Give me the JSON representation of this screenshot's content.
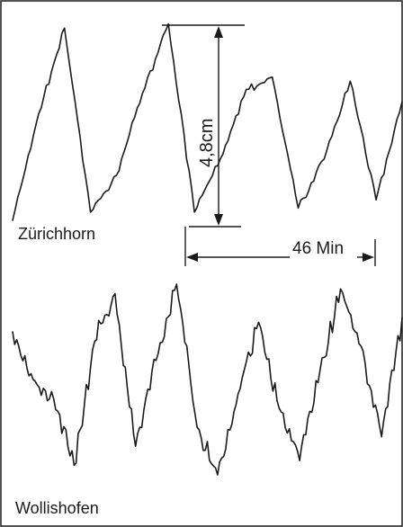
{
  "chart_data": [
    {
      "type": "line",
      "series": [
        {
          "name": "Zürichhorn",
          "values": [
            0.0,
            2.6,
            4.7,
            0.2,
            1.1,
            3.1,
            4.8,
            0.2,
            1.5,
            3.2,
            3.5,
            0.3,
            1.5,
            3.4,
            0.5,
            2.9
          ]
        }
      ],
      "annotations": {
        "amplitude": "4,8cm",
        "period": "46 Min"
      },
      "colors": {
        "trace": "#1a1a1a",
        "background": "#ffffff"
      }
    },
    {
      "type": "line",
      "series": [
        {
          "name": "Wollishofen",
          "values": [
            3.0,
            2.0,
            1.6,
            0.2,
            2.8,
            3.8,
            0.6,
            2.4,
            4.0,
            1.0,
            0.0,
            1.7,
            3.2,
            1.4,
            0.3,
            2.2,
            3.9,
            2.7,
            0.8,
            3.3
          ]
        }
      ]
    }
  ]
}
